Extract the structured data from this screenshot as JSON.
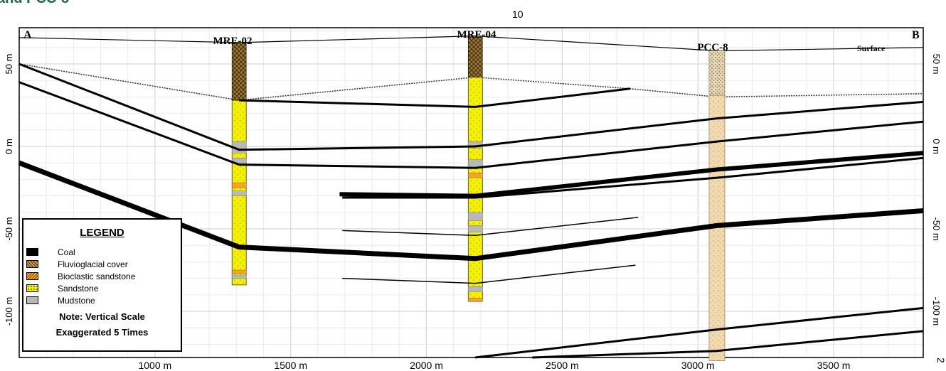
{
  "section_title": "and PCC-8",
  "top_number": "10",
  "page_number": "2",
  "frame": {
    "left_label": "A",
    "right_label": "B",
    "surface_label": "Surface"
  },
  "wells": [
    {
      "name": "MRE-02",
      "x_m": 1310,
      "top_m": 63,
      "bottom_m": -84
    },
    {
      "name": "MRE-04",
      "x_m": 2180,
      "top_m": 67,
      "bottom_m": -94
    },
    {
      "name": "PCC-8",
      "x_m": 3070,
      "top_m": 58,
      "bottom_m": -130
    }
  ],
  "chart_data": {
    "type": "cross-section",
    "x_ticks": [
      {
        "value": 1000,
        "label": "1000 m"
      },
      {
        "value": 1500,
        "label": "1500 m"
      },
      {
        "value": 2000,
        "label": "2000 m"
      },
      {
        "value": 2500,
        "label": "2500 m"
      },
      {
        "value": 3000,
        "label": "3000 m"
      },
      {
        "value": 3500,
        "label": "3500 m"
      }
    ],
    "y_ticks": [
      {
        "value": 50,
        "label": "50 m"
      },
      {
        "value": 0,
        "label": "0 m"
      },
      {
        "value": -50,
        "label": "-50 m"
      },
      {
        "value": -100,
        "label": "-100 m"
      }
    ],
    "xlim": [
      500,
      3830
    ],
    "ylim": [
      -128,
      72
    ],
    "grid": true,
    "surface": [
      [
        500,
        66
      ],
      [
        1310,
        63
      ],
      [
        2180,
        67
      ],
      [
        3070,
        58
      ],
      [
        3830,
        60
      ]
    ],
    "cover_base": [
      [
        500,
        50
      ],
      [
        1310,
        28
      ],
      [
        2180,
        42
      ],
      [
        2750,
        35
      ],
      [
        3070,
        30
      ],
      [
        3830,
        32
      ]
    ],
    "coal_seams": [
      {
        "points": [
          [
            1310,
            28
          ],
          [
            2180,
            24
          ],
          [
            2750,
            35
          ]
        ],
        "weight": 3
      },
      {
        "points": [
          [
            500,
            50
          ],
          [
            1310,
            -2
          ],
          [
            2180,
            0
          ],
          [
            3070,
            17
          ],
          [
            3830,
            27
          ]
        ],
        "weight": 3
      },
      {
        "points": [
          [
            500,
            39
          ],
          [
            1310,
            -11
          ],
          [
            2180,
            -13
          ],
          [
            3070,
            3
          ],
          [
            3830,
            15
          ]
        ],
        "weight": 3
      },
      {
        "points": [
          [
            1680,
            -29
          ],
          [
            2180,
            -30
          ],
          [
            3070,
            -14
          ],
          [
            3830,
            -4
          ]
        ],
        "weight": 6
      },
      {
        "points": [
          [
            1690,
            -31
          ],
          [
            2180,
            -31
          ],
          [
            3070,
            -19
          ],
          [
            3830,
            -7
          ]
        ],
        "weight": 3
      },
      {
        "points": [
          [
            500,
            -10
          ],
          [
            1310,
            -61
          ],
          [
            2180,
            -68
          ],
          [
            3070,
            -48
          ],
          [
            3830,
            -39
          ]
        ],
        "weight": 7
      },
      {
        "points": [
          [
            1690,
            -51
          ],
          [
            2180,
            -54
          ],
          [
            2780,
            -43
          ]
        ],
        "weight": 1.5
      },
      {
        "points": [
          [
            1690,
            -80
          ],
          [
            2180,
            -83
          ],
          [
            2770,
            -72
          ]
        ],
        "weight": 1.5
      },
      {
        "points": [
          [
            2180,
            -128
          ],
          [
            3070,
            -111
          ],
          [
            3830,
            -98
          ]
        ],
        "weight": 3
      },
      {
        "points": [
          [
            2390,
            -128
          ],
          [
            3070,
            -124
          ],
          [
            3830,
            -112
          ]
        ],
        "weight": 3
      }
    ]
  },
  "legend": {
    "title": "LEGEND",
    "items": [
      {
        "label": "Coal",
        "color": "#000000"
      },
      {
        "label": "Fluvioglacial cover",
        "color": "#8a6b2a"
      },
      {
        "label": "Bioclastic sandstone",
        "color": "#f2a52a"
      },
      {
        "label": "Sandstone",
        "color": "#f4f000"
      },
      {
        "label": "Mudstone",
        "color": "#b8b8b8"
      }
    ],
    "note_line1": "Note: Vertical Scale",
    "note_line2": "Exaggerated 5 Times"
  },
  "colors": {
    "frame_title": "#1e6b3c",
    "sandstone": "#f4f000",
    "cover": "#7a5a1e",
    "mudstone": "#b8b8b8",
    "bioclastic": "#f2a52a",
    "pcc_column": "#f3d9ae"
  }
}
